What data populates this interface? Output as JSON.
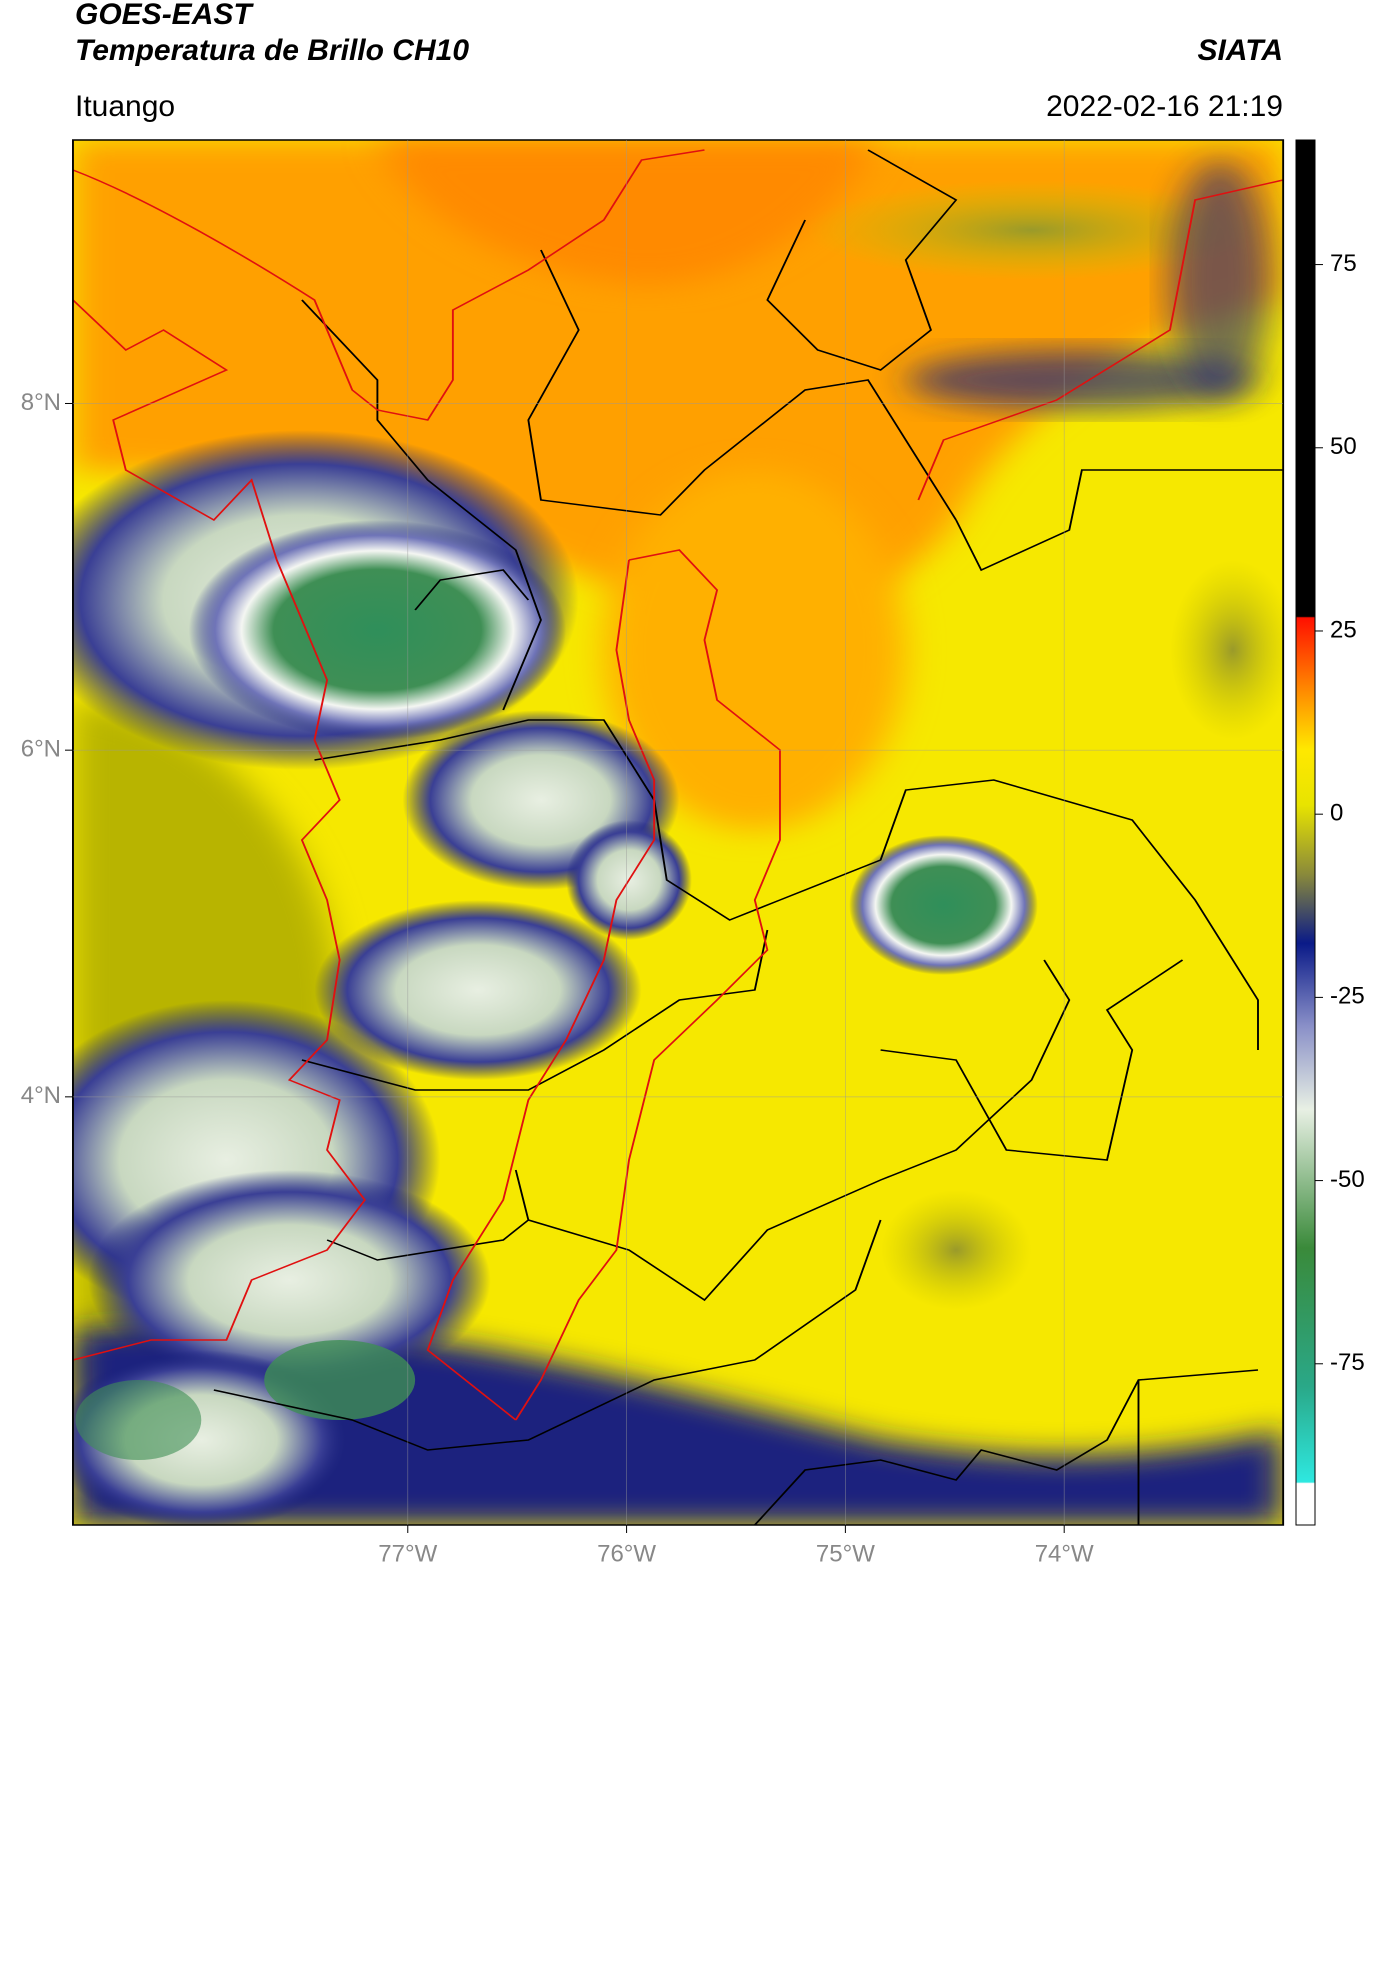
{
  "header": {
    "title": "GOES-EAST",
    "subtitle": "Temperatura de Brillo CH10",
    "source": "SIATA",
    "location": "Ituango",
    "timestamp": "2022-02-16 21:19"
  },
  "map": {
    "xlim": [
      -78.53,
      -73.0
    ],
    "ylim": [
      1.53,
      9.52
    ],
    "xticks": [
      {
        "value": -77,
        "label": "77°W"
      },
      {
        "value": -76,
        "label": "76°W"
      },
      {
        "value": -75,
        "label": "75°W"
      },
      {
        "value": -74,
        "label": "74°W"
      }
    ],
    "yticks": [
      {
        "value": 8,
        "label": "8°N"
      },
      {
        "value": 6,
        "label": "6°N"
      },
      {
        "value": 4,
        "label": "4°N"
      }
    ]
  },
  "colorbar": {
    "lim": [
      -97,
      92
    ],
    "ticks": [
      75,
      50,
      25,
      0,
      -25,
      -50,
      -75
    ]
  }
}
